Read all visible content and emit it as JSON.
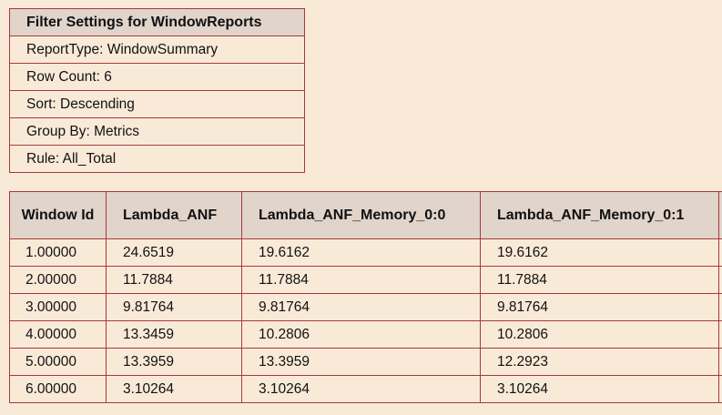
{
  "filter_settings": {
    "title": "Filter Settings for WindowReports",
    "rows": [
      "ReportType: WindowSummary",
      "Row Count: 6",
      "Sort: Descending",
      "Group By: Metrics",
      "Rule: All_Total"
    ]
  },
  "report_table": {
    "columns": [
      "Window Id",
      "Lambda_ANF",
      "Lambda_ANF_Memory_0:0",
      "Lambda_ANF_Memory_0:1",
      ""
    ],
    "rows": [
      [
        "1.00000",
        "24.6519",
        "19.6162",
        "19.6162"
      ],
      [
        "2.00000",
        "11.7884",
        "11.7884",
        "11.7884"
      ],
      [
        "3.00000",
        "9.81764",
        "9.81764",
        "9.81764"
      ],
      [
        "4.00000",
        "13.3459",
        "10.2806",
        "10.2806"
      ],
      [
        "5.00000",
        "13.3959",
        "13.3959",
        "12.2923"
      ],
      [
        "6.00000",
        "3.10264",
        "3.10264",
        "3.10264"
      ]
    ]
  }
}
